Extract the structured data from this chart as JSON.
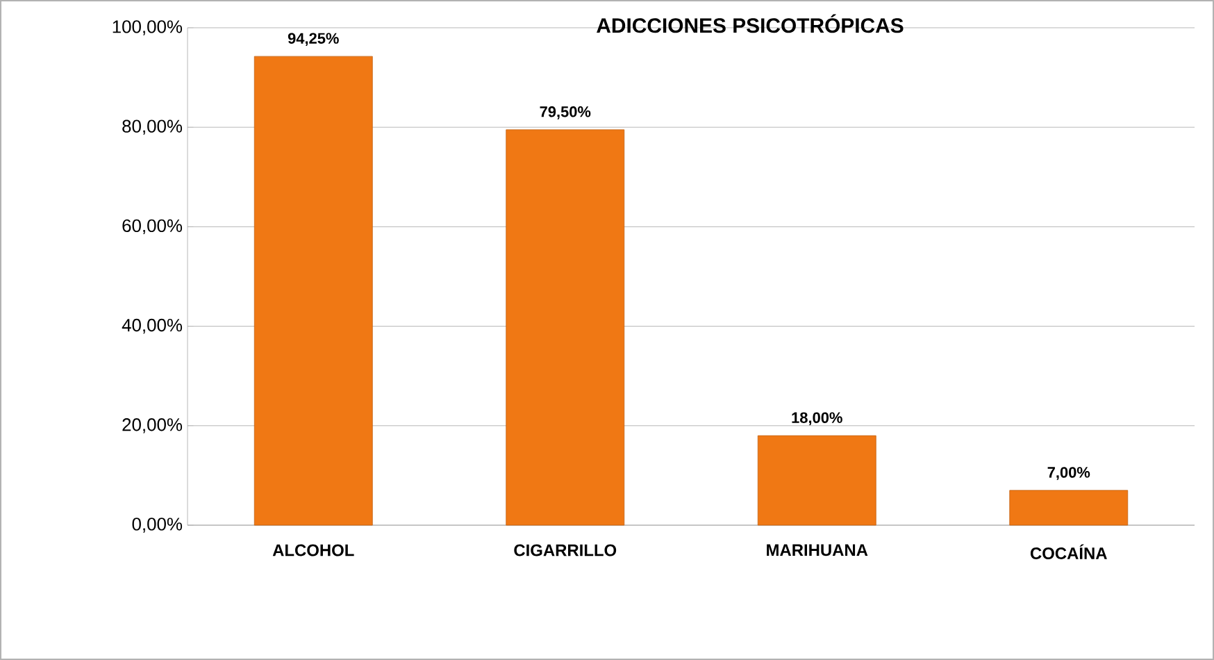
{
  "chart_data": {
    "type": "bar",
    "title": "ADICCIONES PSICOTRÓPICAS",
    "categories": [
      "ALCOHOL",
      "CIGARRILLO",
      "MARIHUANA",
      "COCAÍNA"
    ],
    "values": [
      94.25,
      79.5,
      18,
      7
    ],
    "value_labels": [
      "94,25%",
      "79,50%",
      "18,00%",
      "7,00%"
    ],
    "color": "#f07814",
    "ylim": [
      0,
      100
    ],
    "yticks": [
      {
        "value": 0,
        "label": "0,00%"
      },
      {
        "value": 20,
        "label": "20,00%"
      },
      {
        "value": 40,
        "label": "40,00%"
      },
      {
        "value": 60,
        "label": "60,00%"
      },
      {
        "value": 80,
        "label": "80,00%"
      },
      {
        "value": 100,
        "label": "100,00%"
      }
    ],
    "grid": "y"
  }
}
